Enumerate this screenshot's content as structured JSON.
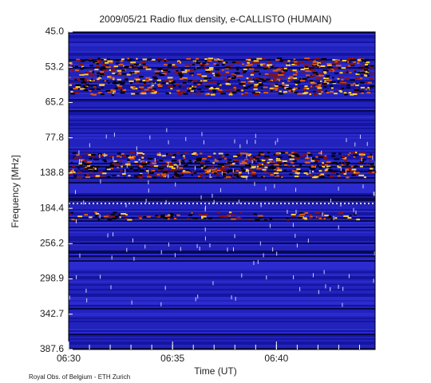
{
  "chart_data": {
    "type": "spectrogram",
    "title": "2009/05/21  Radio flux density, e-CALLISTO (HUMAIN)",
    "x_label": "Time (UT)",
    "y_label": "Frequency [MHz]",
    "credit": "Royal Obs. of Belgium - ETH Zurich",
    "xlim": [
      "06:30",
      "06:44:45"
    ],
    "xticks": [
      "06:30",
      "06:35",
      "06:40"
    ],
    "y_labels": [
      "45.0",
      "53.2",
      "65.2",
      "77.8",
      "138.8",
      "184.4",
      "256.2",
      "298.9",
      "342.7",
      "387.6"
    ]
  }
}
